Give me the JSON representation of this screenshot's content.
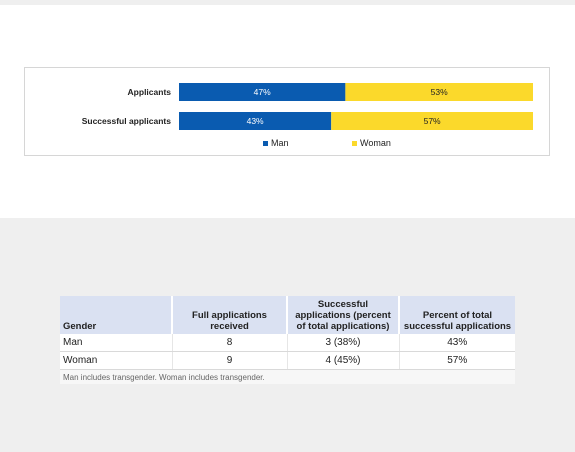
{
  "chart_data": {
    "type": "bar",
    "orientation": "horizontal",
    "stacked": true,
    "categories": [
      "Applicants",
      "Successful applicants"
    ],
    "series": [
      {
        "name": "Man",
        "values": [
          47,
          43
        ],
        "labels": [
          "47%",
          "43%"
        ],
        "color": "#0a5bb0"
      },
      {
        "name": "Woman",
        "values": [
          53,
          57
        ],
        "labels": [
          "53%",
          "57%"
        ],
        "color": "#fbd92b"
      }
    ],
    "xlim": [
      0,
      100
    ],
    "unit": "%",
    "legend_position": "bottom",
    "grid": false
  },
  "table": {
    "headers": [
      "Gender",
      "Full applications received",
      "Successful applications (percent of total applications)",
      "Percent of total successful applications"
    ],
    "rows": [
      [
        "Man",
        "8",
        "3 (38%)",
        "43%"
      ],
      [
        "Woman",
        "9",
        "4 (45%)",
        "57%"
      ]
    ],
    "note": "Man includes transgender. Woman includes transgender."
  }
}
